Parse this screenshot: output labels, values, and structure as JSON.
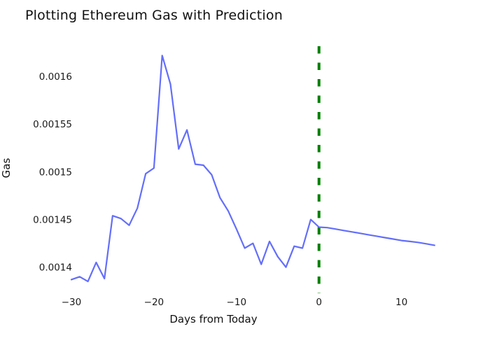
{
  "figure": {
    "background": "#ffffff"
  },
  "chart_data": {
    "type": "line",
    "title": "Plotting Ethereum Gas with Prediction",
    "xlabel": "Days from Today",
    "ylabel": "Gas",
    "grid": false,
    "legend": "none",
    "xlim": [
      -31,
      15
    ],
    "ylim": [
      0.001382,
      0.001625
    ],
    "x": [
      -30,
      -29,
      -28,
      -27,
      -26,
      -25,
      -24,
      -23,
      -22,
      -21,
      -20,
      -19,
      -18,
      -17,
      -16,
      -15,
      -14,
      -13,
      -12,
      -11,
      -10,
      -9,
      -8,
      -7,
      -6,
      -5,
      -4,
      -3,
      -2,
      -1,
      0,
      1,
      2,
      3,
      4,
      5,
      6,
      7,
      8,
      9,
      10,
      11,
      12,
      13,
      14
    ],
    "series": [
      {
        "name": "gas",
        "color": "#636EFA",
        "values": [
          0.001387,
          0.00139,
          0.001385,
          0.001405,
          0.001388,
          0.001454,
          0.001451,
          0.001444,
          0.001462,
          0.001498,
          0.001504,
          0.001622,
          0.001592,
          0.001524,
          0.001544,
          0.001508,
          0.001507,
          0.001497,
          0.001473,
          0.001459,
          0.00144,
          0.00142,
          0.001425,
          0.001403,
          0.001427,
          0.001411,
          0.0014,
          0.001422,
          0.00142,
          0.00145,
          0.001442,
          0.0014415,
          0.00144,
          0.0014385,
          0.001437,
          0.0014355,
          0.001434,
          0.0014325,
          0.001431,
          0.0014295,
          0.001428,
          0.001427,
          0.001426,
          0.0014245,
          0.001423
        ]
      }
    ],
    "today_line": {
      "x": 0,
      "color": "#008000",
      "style": "dashed"
    },
    "xticks": {
      "values": [
        -30,
        -20,
        -10,
        0,
        10
      ],
      "labels": [
        "−30",
        "−20",
        "−10",
        "0",
        "10"
      ]
    },
    "yticks": {
      "values": [
        0.0014,
        0.00145,
        0.0015,
        0.00155,
        0.0016
      ],
      "labels": [
        "0.0014",
        "0.00145",
        "0.0015",
        "0.00155",
        "0.0016"
      ]
    }
  }
}
